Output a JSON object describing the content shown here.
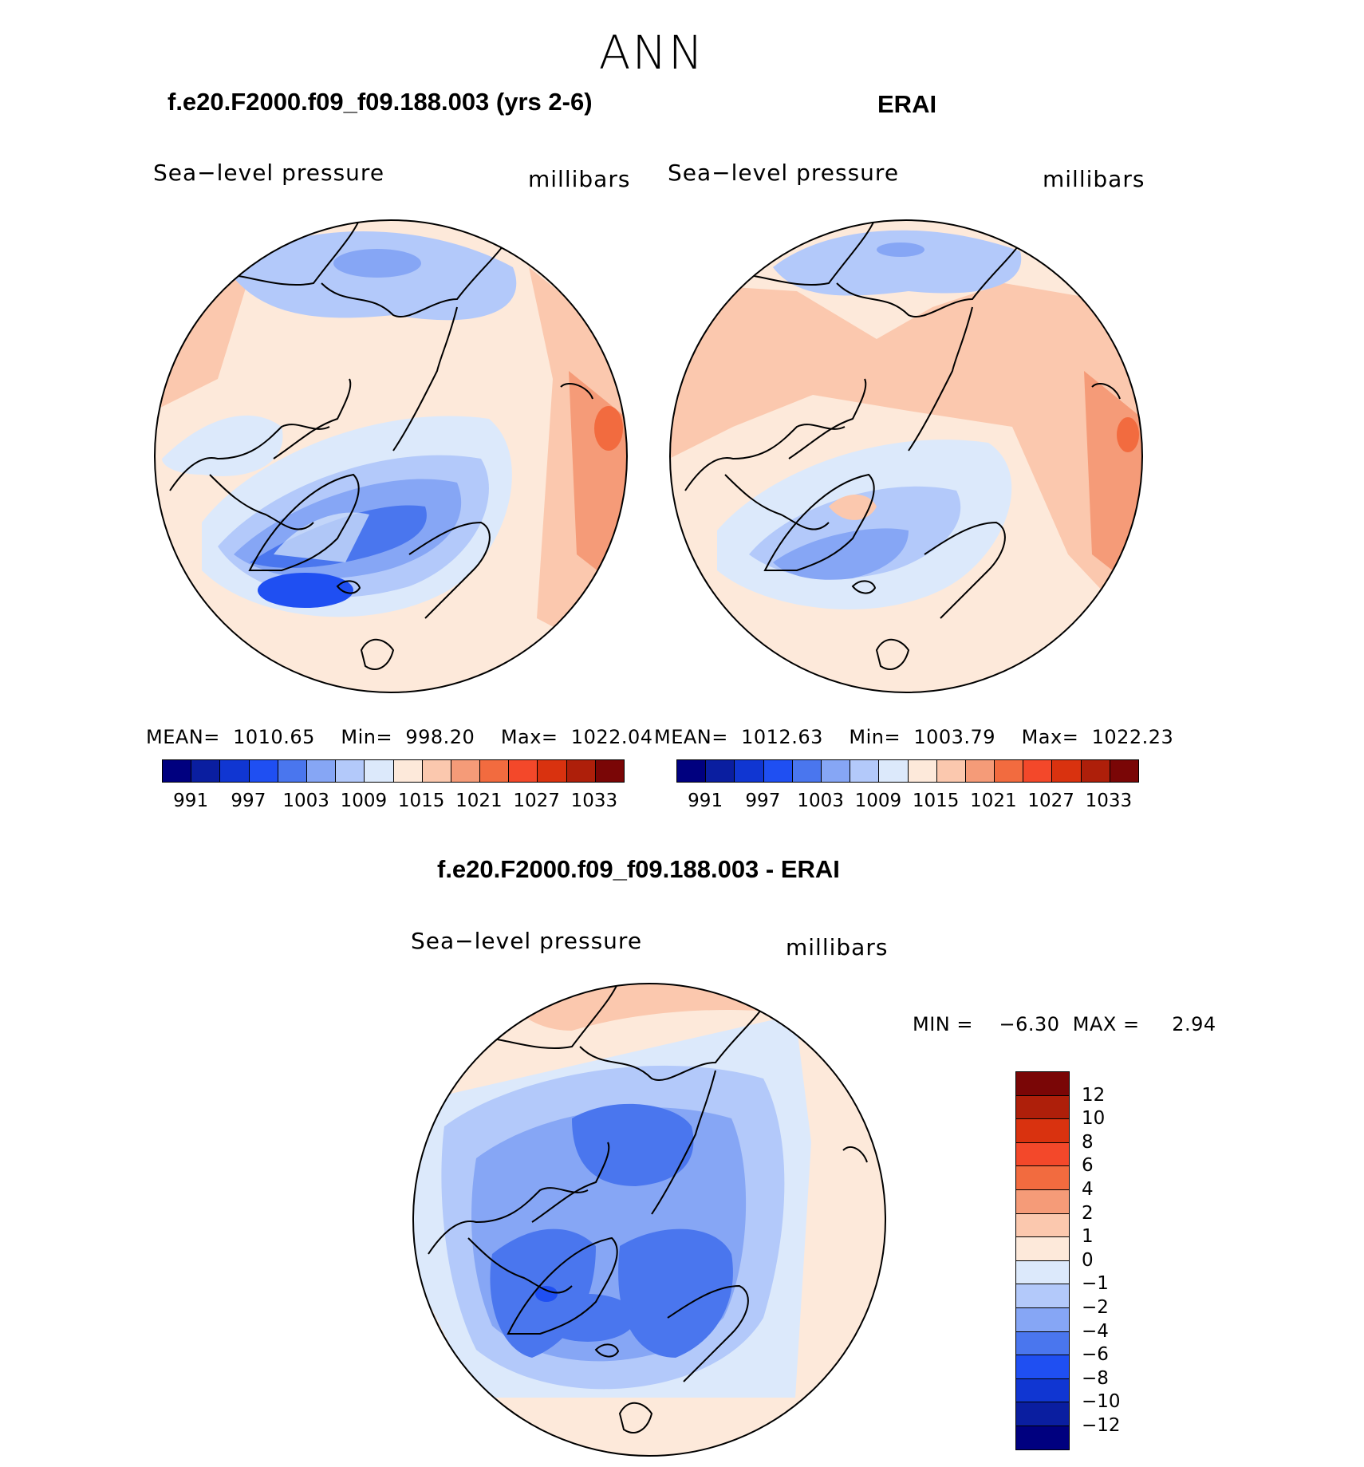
{
  "main_title": "ANN",
  "panels": [
    {
      "title": "f.e20.F2000.f09_f09.188.003 (yrs 2-6)",
      "variable": "Sea−level pressure",
      "units": "millibars",
      "stats": "MEAN=  1010.65    Min=  998.20    Max=  1022.04"
    },
    {
      "title": "ERAI",
      "variable": "Sea−level pressure",
      "units": "millibars",
      "stats": "MEAN=  1012.63    Min=  1003.79    Max=  1022.23"
    },
    {
      "title": "f.e20.F2000.f09_f09.188.003 - ERAI",
      "variable": "Sea−level pressure",
      "units": "millibars",
      "stats": "MIN =    −6.30  MAX =     2.94"
    }
  ],
  "abs_colorbar": {
    "labels": [
      "991",
      "997",
      "1003",
      "1009",
      "1015",
      "1021",
      "1027",
      "1033"
    ],
    "colors": [
      "#00007f",
      "#0a1ea0",
      "#1036d2",
      "#1f4ff2",
      "#4a76ee",
      "#86a6f5",
      "#b3c9fa",
      "#dce9fb",
      "#fde9da",
      "#fbc8ae",
      "#f59b78",
      "#f26b3f",
      "#f3482a",
      "#d9320f",
      "#ae1f0a",
      "#7a0606"
    ]
  },
  "diff_colorbar": {
    "labels": [
      "12",
      "10",
      "8",
      "6",
      "4",
      "2",
      "1",
      "0",
      "−1",
      "−2",
      "−4",
      "−6",
      "−8",
      "−10",
      "−12"
    ],
    "colors": [
      "#7a0606",
      "#ae1f0a",
      "#d9320f",
      "#f3482a",
      "#f26b3f",
      "#f59b78",
      "#fbc8ae",
      "#fde9da",
      "#dce9fb",
      "#b3c9fa",
      "#86a6f5",
      "#4a76ee",
      "#1f4ff2",
      "#1036d2",
      "#0a1ea0",
      "#00007f"
    ]
  },
  "map_colors": {
    "ocean_warm_1": "#fde9da",
    "ocean_warm_2": "#fbc8ae",
    "ocean_warm_3": "#f59b78",
    "ocean_warm_4": "#f26b3f",
    "cool_1": "#dce9fb",
    "cool_2": "#b3c9fa",
    "cool_3": "#86a6f5",
    "cool_4": "#4a76ee",
    "cool_5": "#1f4ff2"
  }
}
